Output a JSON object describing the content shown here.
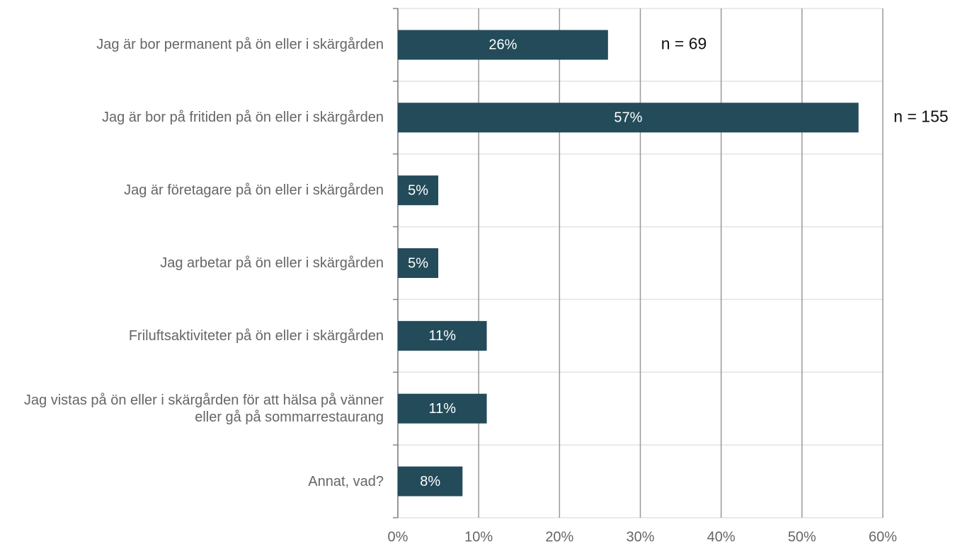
{
  "chart_data": {
    "type": "bar",
    "orientation": "horizontal",
    "categories": [
      "Jag är bor permanent på ön eller i skärgården",
      "Jag är bor på fritiden på ön eller i skärgården",
      "Jag är företagare på ön eller i skärgården",
      "Jag arbetar på ön eller i skärgården",
      "Friluftsaktiviteter på ön eller i skärgården",
      "Jag vistas på ön eller i skärgården för att hälsa på vänner eller gå på sommarrestaurang",
      "Annat, vad?"
    ],
    "values": [
      26,
      57,
      5,
      5,
      11,
      11,
      8
    ],
    "value_labels": [
      "26%",
      "57%",
      "5%",
      "5%",
      "11%",
      "11%",
      "8%"
    ],
    "color": "#234b5a",
    "xlim": [
      0,
      60
    ],
    "xticks": [
      {
        "value": 0,
        "label": "0%"
      },
      {
        "value": 10,
        "label": "10%"
      },
      {
        "value": 20,
        "label": "20%"
      },
      {
        "value": 30,
        "label": "30%"
      },
      {
        "value": 40,
        "label": "40%"
      },
      {
        "value": 50,
        "label": "50%"
      },
      {
        "value": 60,
        "label": "60%"
      }
    ],
    "grid": true,
    "annotations": [
      "n = 69",
      "n = 155"
    ]
  }
}
